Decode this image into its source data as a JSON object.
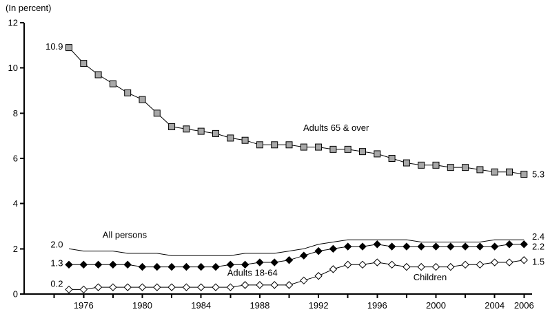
{
  "chart_data": {
    "type": "line",
    "unit_label": "(In percent)",
    "ylim": [
      0,
      12
    ],
    "y_ticks": [
      0,
      2,
      4,
      6,
      8,
      10,
      12
    ],
    "x_minor_tick_years": [
      1974,
      1976,
      1978,
      1980,
      1982,
      1984,
      1986,
      1988,
      1990,
      1992,
      1994,
      1996,
      1998,
      2000,
      2002,
      2004,
      2006
    ],
    "x_label_ticks": [
      {
        "year": 1976,
        "label": "1976"
      },
      {
        "year": 1980,
        "label": "1980"
      },
      {
        "year": 1984,
        "label": "1984"
      },
      {
        "year": 1988,
        "label": "1988"
      },
      {
        "year": 1992,
        "label": "1992"
      },
      {
        "year": 1996,
        "label": "1996"
      },
      {
        "year": 2000,
        "label": "2000"
      },
      {
        "year": 2004,
        "label": "2004"
      },
      {
        "year": 2006,
        "label": "2006"
      }
    ],
    "x_years": [
      1975,
      1976,
      1977,
      1978,
      1979,
      1980,
      1981,
      1982,
      1983,
      1984,
      1985,
      1986,
      1987,
      1988,
      1989,
      1990,
      1991,
      1992,
      1993,
      1994,
      1995,
      1996,
      1997,
      1998,
      1999,
      2000,
      2001,
      2002,
      2003,
      2004,
      2005,
      2006
    ],
    "grid": false,
    "legend": "inline-labels",
    "series": [
      {
        "name": "All persons",
        "marker": "none",
        "line_color": "#000000",
        "values": [
          2.0,
          1.9,
          1.9,
          1.9,
          1.8,
          1.8,
          1.8,
          1.7,
          1.7,
          1.7,
          1.7,
          1.7,
          1.8,
          1.8,
          1.8,
          1.9,
          2.0,
          2.2,
          2.3,
          2.4,
          2.4,
          2.4,
          2.4,
          2.4,
          2.3,
          2.3,
          2.3,
          2.3,
          2.3,
          2.4,
          2.4,
          2.4
        ]
      },
      {
        "name": "Adults 65 & over",
        "marker": "square",
        "marker_fill": "#a8a8a8",
        "line_color": "#000000",
        "values": [
          10.9,
          10.2,
          9.7,
          9.3,
          8.9,
          8.6,
          8.0,
          7.4,
          7.3,
          7.2,
          7.1,
          6.9,
          6.8,
          6.6,
          6.6,
          6.6,
          6.5,
          6.5,
          6.4,
          6.4,
          6.3,
          6.2,
          6.0,
          5.8,
          5.7,
          5.7,
          5.6,
          5.6,
          5.5,
          5.4,
          5.4,
          5.3
        ]
      },
      {
        "name": "Adults 18-64",
        "marker": "diamond",
        "marker_fill": "#000000",
        "line_color": "#000000",
        "values": [
          1.3,
          1.3,
          1.3,
          1.3,
          1.3,
          1.2,
          1.2,
          1.2,
          1.2,
          1.2,
          1.2,
          1.3,
          1.3,
          1.4,
          1.4,
          1.5,
          1.7,
          1.9,
          2.0,
          2.1,
          2.1,
          2.2,
          2.1,
          2.1,
          2.1,
          2.1,
          2.1,
          2.1,
          2.1,
          2.1,
          2.2,
          2.2
        ]
      },
      {
        "name": "Children",
        "marker": "diamond",
        "marker_fill": "#ffffff",
        "line_color": "#000000",
        "values": [
          0.2,
          0.2,
          0.3,
          0.3,
          0.3,
          0.3,
          0.3,
          0.3,
          0.3,
          0.3,
          0.3,
          0.3,
          0.4,
          0.4,
          0.4,
          0.4,
          0.6,
          0.8,
          1.1,
          1.3,
          1.3,
          1.4,
          1.3,
          1.2,
          1.2,
          1.2,
          1.2,
          1.3,
          1.3,
          1.4,
          1.4,
          1.5
        ]
      }
    ],
    "annotations": [
      {
        "text": "10.9",
        "year": 1974.6,
        "value": 10.95,
        "anchor": "end",
        "role": "start-value-adults-65"
      },
      {
        "text": "5.3",
        "year": 2006.55,
        "value": 5.3,
        "anchor": "start",
        "role": "end-value-adults-65"
      },
      {
        "text": "Adults 65 & over",
        "year": 1993.2,
        "value": 7.35,
        "anchor": "middle",
        "role": "series-label"
      },
      {
        "text": "All persons",
        "year": 1978.8,
        "value": 2.62,
        "anchor": "middle",
        "role": "series-label"
      },
      {
        "text": "2.0",
        "year": 1974.6,
        "value": 2.2,
        "anchor": "end",
        "role": "start-value-all-persons"
      },
      {
        "text": "1.3",
        "year": 1974.6,
        "value": 1.37,
        "anchor": "end",
        "role": "start-value-adults-18-64"
      },
      {
        "text": "0.2",
        "year": 1974.6,
        "value": 0.45,
        "anchor": "end",
        "role": "start-value-children"
      },
      {
        "text": "Adults 18-64",
        "year": 1987.5,
        "value": 0.95,
        "anchor": "middle",
        "role": "series-label"
      },
      {
        "text": "Children",
        "year": 1999.6,
        "value": 0.74,
        "anchor": "middle",
        "role": "series-label"
      },
      {
        "text": "2.4",
        "year": 2006.55,
        "value": 2.55,
        "anchor": "start",
        "role": "end-value-all-persons"
      },
      {
        "text": "2.2",
        "year": 2006.55,
        "value": 2.1,
        "anchor": "start",
        "role": "end-value-adults-18-64"
      },
      {
        "text": "1.5",
        "year": 2006.55,
        "value": 1.43,
        "anchor": "start",
        "role": "end-value-children"
      }
    ],
    "colors": {
      "axis": "#000000",
      "text": "#000000",
      "line": "#000000",
      "square_marker_fill": "#a8a8a8",
      "diamond_filled": "#000000",
      "diamond_open": "#ffffff",
      "background": "#ffffff"
    }
  }
}
